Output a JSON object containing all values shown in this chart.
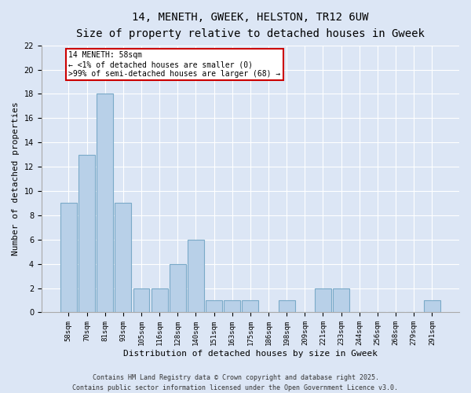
{
  "title_line1": "14, MENETH, GWEEK, HELSTON, TR12 6UW",
  "title_line2": "Size of property relative to detached houses in Gweek",
  "xlabel": "Distribution of detached houses by size in Gweek",
  "ylabel": "Number of detached properties",
  "categories": [
    "58sqm",
    "70sqm",
    "81sqm",
    "93sqm",
    "105sqm",
    "116sqm",
    "128sqm",
    "140sqm",
    "151sqm",
    "163sqm",
    "175sqm",
    "186sqm",
    "198sqm",
    "209sqm",
    "221sqm",
    "233sqm",
    "244sqm",
    "256sqm",
    "268sqm",
    "279sqm",
    "291sqm"
  ],
  "values": [
    9,
    13,
    18,
    9,
    2,
    2,
    4,
    6,
    1,
    1,
    1,
    0,
    1,
    0,
    2,
    2,
    0,
    0,
    0,
    0,
    1
  ],
  "bar_color": "#b8d0e8",
  "bar_edge_color": "#7aaac8",
  "highlight_bar_index": 0,
  "highlight_color": "#cc0000",
  "ylim": [
    0,
    22
  ],
  "yticks": [
    0,
    2,
    4,
    6,
    8,
    10,
    12,
    14,
    16,
    18,
    20,
    22
  ],
  "annotation_box_text": "14 MENETH: 58sqm\n← <1% of detached houses are smaller (0)\n>99% of semi-detached houses are larger (68) →",
  "annotation_box_color": "#cc0000",
  "footer_line1": "Contains HM Land Registry data © Crown copyright and database right 2025.",
  "footer_line2": "Contains public sector information licensed under the Open Government Licence v3.0.",
  "bg_color": "#dce6f5",
  "plot_bg_color": "#dce6f5",
  "grid_color": "#ffffff",
  "title_fontsize": 10,
  "subtitle_fontsize": 9,
  "tick_fontsize": 6.5,
  "label_fontsize": 8,
  "footer_fontsize": 6
}
